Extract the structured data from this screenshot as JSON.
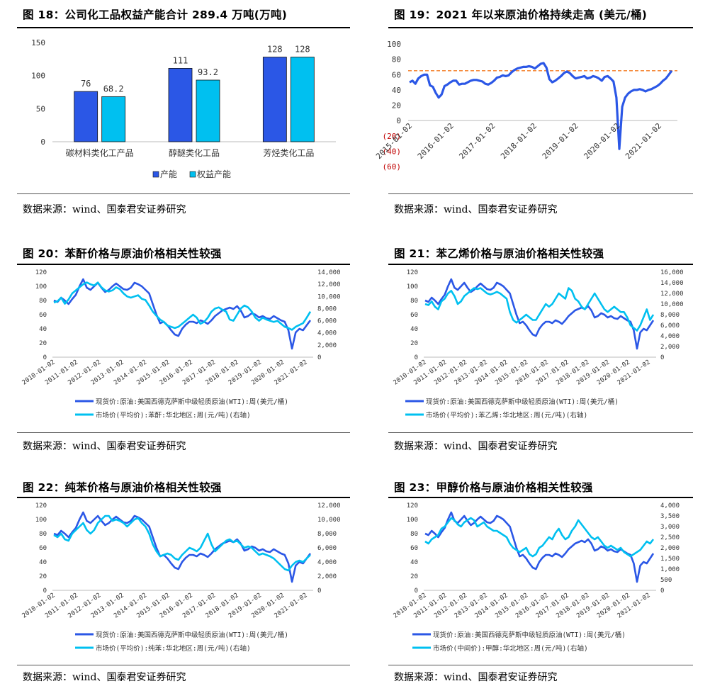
{
  "sections": [
    {
      "title": "图 18：公司化工品权益产能合计 289.4 万吨(万吨)",
      "source": "数据来源：wind、国泰君安证券研究"
    },
    {
      "title": "图 19：2021 年以来原油价格持续走高 (美元/桶)",
      "source": "数据来源：wind、国泰君安证券研究"
    },
    {
      "title": "图 20：苯酐价格与原油价格相关性较强",
      "source": "数据来源：wind、国泰君安证券研究"
    },
    {
      "title": "图 21：苯乙烯价格与原油价格相关性较强",
      "source": "数据来源：wind、国泰君安证券研究"
    },
    {
      "title": "图 22：纯苯价格与原油价格相关性较强",
      "source": "数据来源：wind、国泰君安证券研究"
    },
    {
      "title": "图 23：甲醇价格与原油价格相关性较强",
      "source": "数据来源：wind、国泰君安证券研究"
    }
  ],
  "chart_data": [
    {
      "type": "bar",
      "categories": [
        "碳材料类化工产品",
        "醇醚类化工品",
        "芳烃类化工品"
      ],
      "series": [
        {
          "name": "产能",
          "values": [
            76,
            111,
            128
          ],
          "labels": [
            "76",
            "111",
            "128"
          ],
          "color": "#2b57e6"
        },
        {
          "name": "权益产能",
          "values": [
            68.2,
            93.2,
            128
          ],
          "labels": [
            "68.2",
            "93.2",
            "128"
          ],
          "color": "#00c0f0"
        }
      ],
      "ylim": [
        0,
        150
      ],
      "yticks": [
        "0",
        "50",
        "100",
        "150"
      ],
      "legend": "bottom"
    },
    {
      "type": "line",
      "x_ticks": [
        "2015-01-02",
        "2016-01-02",
        "2017-01-02",
        "2018-01-02",
        "2019-01-02",
        "2020-01-02",
        "2021-01-02"
      ],
      "y_ticks": [
        "(60)",
        "(40)",
        "(20)",
        "0",
        "20",
        "40",
        "60",
        "80",
        "100"
      ],
      "ylim": [
        -60,
        100
      ],
      "reference_line": 65,
      "series": [
        {
          "values": [
            50,
            52,
            48,
            55,
            58,
            60,
            60,
            46,
            44,
            36,
            30,
            34,
            45,
            47,
            50,
            52,
            52,
            47,
            48,
            48,
            50,
            52,
            53,
            53,
            52,
            51,
            48,
            47,
            49,
            52,
            56,
            57,
            59,
            58,
            59,
            63,
            66,
            68,
            69,
            70,
            70,
            71,
            70,
            68,
            71,
            74,
            75,
            69,
            54,
            50,
            52,
            55,
            58,
            62,
            64,
            62,
            58,
            55,
            56,
            57,
            58,
            55,
            56,
            58,
            57,
            55,
            52,
            57,
            58,
            55,
            51,
            30,
            -37,
            18,
            30,
            35,
            38,
            40,
            40,
            41,
            40,
            38,
            40,
            41,
            43,
            45,
            48,
            52,
            55,
            60,
            65
          ],
          "color": "#2b57e6"
        }
      ],
      "ref_color": "#f47b20"
    },
    {
      "type": "line",
      "x_ticks": [
        "2010-01-02",
        "2011-01-02",
        "2012-01-02",
        "2013-01-02",
        "2014-01-02",
        "2015-01-02",
        "2016-01-02",
        "2017-01-02",
        "2018-01-02",
        "2019-01-02",
        "2020-01-02",
        "2021-01-02"
      ],
      "left_ticks": [
        "0",
        "20",
        "40",
        "60",
        "80",
        "100",
        "120"
      ],
      "right_ticks": [
        "0",
        "2,000",
        "4,000",
        "6,000",
        "8,000",
        "10,000",
        "12,000",
        "14,000"
      ],
      "left_lim": [
        0,
        120
      ],
      "right_lim": [
        0,
        14000
      ],
      "series": [
        {
          "name": "现货价:原油:美国西德克萨斯中级轻质原油(WTI):周(美元/桶)",
          "axis": "left",
          "color": "#2b57e6",
          "values": [
            80,
            78,
            84,
            80,
            75,
            82,
            88,
            100,
            110,
            98,
            95,
            100,
            105,
            98,
            92,
            95,
            100,
            104,
            100,
            96,
            95,
            98,
            105,
            103,
            100,
            95,
            90,
            75,
            60,
            48,
            50,
            45,
            38,
            32,
            30,
            40,
            46,
            50,
            50,
            48,
            52,
            50,
            47,
            52,
            58,
            62,
            66,
            68,
            70,
            68,
            72,
            66,
            56,
            58,
            62,
            60,
            56,
            58,
            55,
            54,
            58,
            55,
            52,
            50,
            38,
            12,
            35,
            40,
            38,
            45,
            52
          ]
        },
        {
          "name": "市场价(平均价):苯酐:华北地区:周(元/吨)(右轴)",
          "axis": "right",
          "color": "#00c0f0",
          "values": [
            9000,
            9200,
            9800,
            8800,
            9500,
            10500,
            11000,
            11500,
            12000,
            12300,
            12000,
            11800,
            12300,
            11500,
            11000,
            10800,
            11000,
            11500,
            11200,
            10500,
            10000,
            9800,
            10000,
            10200,
            9600,
            9400,
            8500,
            7500,
            6800,
            6200,
            5800,
            5200,
            5000,
            4800,
            5000,
            5500,
            6000,
            6500,
            7000,
            6500,
            5500,
            5800,
            6500,
            7500,
            8000,
            8200,
            7800,
            7500,
            6200,
            6000,
            7000,
            8000,
            8500,
            8200,
            7500,
            6500,
            6000,
            6500,
            6200,
            6000,
            5800,
            6000,
            5500,
            5000,
            4800,
            4500,
            5000,
            5300,
            5600,
            6500,
            7500
          ]
        }
      ],
      "legend": "bottom"
    },
    {
      "type": "line",
      "x_ticks": [
        "2010-01-02",
        "2011-01-02",
        "2012-01-02",
        "2013-01-02",
        "2014-01-02",
        "2015-01-02",
        "2016-01-02",
        "2017-01-02",
        "2018-01-02",
        "2019-01-02",
        "2020-01-02",
        "2021-01-02"
      ],
      "left_ticks": [
        "0",
        "20",
        "40",
        "60",
        "80",
        "100",
        "120"
      ],
      "right_ticks": [
        "0",
        "2,000",
        "4,000",
        "6,000",
        "8,000",
        "10,000",
        "12,000",
        "14,000",
        "16,000"
      ],
      "left_lim": [
        0,
        120
      ],
      "right_lim": [
        0,
        16000
      ],
      "series": [
        {
          "name": "现货价:原油:美国西德克萨斯中级轻质原油(WTI):周(美元/桶)",
          "axis": "left",
          "color": "#2b57e6",
          "values": [
            80,
            78,
            84,
            80,
            75,
            82,
            88,
            100,
            110,
            98,
            95,
            100,
            105,
            98,
            92,
            95,
            100,
            104,
            100,
            96,
            95,
            98,
            105,
            103,
            100,
            95,
            90,
            75,
            60,
            48,
            50,
            45,
            38,
            32,
            30,
            40,
            46,
            50,
            50,
            48,
            52,
            50,
            47,
            52,
            58,
            62,
            66,
            68,
            70,
            68,
            72,
            66,
            56,
            58,
            62,
            60,
            56,
            58,
            55,
            54,
            58,
            55,
            52,
            50,
            38,
            12,
            35,
            40,
            38,
            45,
            52
          ]
        },
        {
          "name": "市场价(平均价):苯乙烯:华北地区:周(元/吨)(右轴)",
          "axis": "right",
          "color": "#00c0f0",
          "values": [
            10000,
            9800,
            10500,
            9500,
            9000,
            10500,
            11000,
            12000,
            12500,
            11500,
            10000,
            10500,
            11500,
            12000,
            12500,
            13000,
            12800,
            13000,
            12500,
            12000,
            11800,
            12000,
            12300,
            12000,
            11500,
            11000,
            8500,
            7000,
            6500,
            7000,
            7500,
            8000,
            7500,
            7000,
            7000,
            8000,
            9000,
            10000,
            9500,
            10000,
            11000,
            12000,
            11500,
            11000,
            13000,
            12500,
            11000,
            10500,
            9500,
            9000,
            10000,
            11000,
            12000,
            11000,
            10000,
            9000,
            8500,
            9000,
            9500,
            9000,
            8500,
            8500,
            7500,
            6000,
            5500,
            5000,
            6000,
            7500,
            9000,
            7000,
            8000
          ]
        }
      ],
      "legend": "bottom"
    },
    {
      "type": "line",
      "x_ticks": [
        "2010-01-02",
        "2011-01-02",
        "2012-01-02",
        "2013-01-02",
        "2014-01-02",
        "2015-01-02",
        "2016-01-02",
        "2017-01-02",
        "2018-01-02",
        "2019-01-02",
        "2020-01-02",
        "2021-01-02"
      ],
      "left_ticks": [
        "0",
        "20",
        "40",
        "60",
        "80",
        "100",
        "120"
      ],
      "right_ticks": [
        "0",
        "2,000",
        "4,000",
        "6,000",
        "8,000",
        "10,000",
        "12,000"
      ],
      "left_lim": [
        0,
        120
      ],
      "right_lim": [
        0,
        12000
      ],
      "series": [
        {
          "name": "现货价:原油:美国西德克萨斯中级轻质原油(WTI):周(美元/桶)",
          "axis": "left",
          "color": "#2b57e6",
          "values": [
            80,
            78,
            84,
            80,
            75,
            82,
            88,
            100,
            110,
            98,
            95,
            100,
            105,
            98,
            92,
            95,
            100,
            104,
            100,
            96,
            95,
            98,
            105,
            103,
            100,
            95,
            90,
            75,
            60,
            48,
            50,
            45,
            38,
            32,
            30,
            40,
            46,
            50,
            50,
            48,
            52,
            50,
            47,
            52,
            58,
            62,
            66,
            68,
            70,
            68,
            72,
            66,
            56,
            58,
            62,
            60,
            56,
            58,
            55,
            54,
            58,
            55,
            52,
            50,
            38,
            12,
            35,
            40,
            38,
            45,
            52
          ]
        },
        {
          "name": "市场价(平均价):纯苯:华北地区:周(元/吨)(右轴)",
          "axis": "right",
          "color": "#00c0f0",
          "values": [
            7800,
            7500,
            8000,
            7200,
            7000,
            8000,
            8500,
            9000,
            9500,
            8500,
            8000,
            8500,
            9500,
            10000,
            10500,
            10500,
            9800,
            10000,
            9800,
            9500,
            9000,
            9500,
            10000,
            10200,
            9500,
            9000,
            8000,
            6500,
            5500,
            4800,
            5000,
            5200,
            5000,
            4500,
            4300,
            5000,
            5500,
            6000,
            5800,
            5500,
            6000,
            7000,
            8000,
            6500,
            5500,
            6000,
            6500,
            7000,
            7200,
            6800,
            7000,
            6500,
            6000,
            6200,
            6000,
            5500,
            5000,
            5200,
            5000,
            4800,
            4500,
            4000,
            3500,
            3000,
            2800,
            3500,
            4000,
            4200,
            4000,
            4500,
            5000
          ]
        }
      ],
      "legend": "bottom"
    },
    {
      "type": "line",
      "x_ticks": [
        "2010-01-02",
        "2011-01-02",
        "2012-01-02",
        "2013-01-02",
        "2014-01-02",
        "2015-01-02",
        "2016-01-02",
        "2017-01-02",
        "2018-01-02",
        "2019-01-02",
        "2020-01-02",
        "2021-01-02"
      ],
      "left_ticks": [
        "0",
        "20",
        "40",
        "60",
        "80",
        "100",
        "120"
      ],
      "right_ticks": [
        "0",
        "500",
        "1,000",
        "1,500",
        "2,000",
        "2,500",
        "3,000",
        "3,500",
        "4,000"
      ],
      "left_lim": [
        0,
        120
      ],
      "right_lim": [
        0,
        4000
      ],
      "series": [
        {
          "name": "现货价:原油:美国西德克萨斯中级轻质原油(WTI):周(美元/桶)",
          "axis": "left",
          "color": "#2b57e6",
          "values": [
            80,
            78,
            84,
            80,
            75,
            82,
            88,
            100,
            110,
            98,
            95,
            100,
            105,
            98,
            92,
            95,
            100,
            104,
            100,
            96,
            95,
            98,
            105,
            103,
            100,
            95,
            90,
            75,
            60,
            48,
            50,
            45,
            38,
            32,
            30,
            40,
            46,
            50,
            50,
            48,
            52,
            50,
            47,
            52,
            58,
            62,
            66,
            68,
            70,
            68,
            72,
            66,
            56,
            58,
            62,
            60,
            56,
            58,
            55,
            54,
            58,
            55,
            52,
            50,
            38,
            12,
            35,
            40,
            38,
            45,
            52
          ]
        },
        {
          "name": "市场价(中间价):甲醇:华北地区:周(元/吨)(右轴)",
          "axis": "right",
          "color": "#00c0f0",
          "values": [
            2300,
            2200,
            2400,
            2500,
            2600,
            2900,
            3000,
            3200,
            3400,
            3300,
            3100,
            3000,
            3200,
            3300,
            3400,
            3300,
            3000,
            3100,
            3200,
            3000,
            2900,
            2800,
            2800,
            2700,
            2600,
            2500,
            2200,
            2000,
            1900,
            1800,
            1900,
            2000,
            1700,
            1600,
            1700,
            2000,
            2100,
            2300,
            2500,
            2400,
            2700,
            2900,
            2600,
            2400,
            2500,
            2800,
            3000,
            3300,
            3100,
            2900,
            2700,
            2500,
            2400,
            2500,
            2300,
            2100,
            2000,
            2100,
            2000,
            1900,
            2000,
            1800,
            1700,
            1600,
            1700,
            1800,
            1900,
            2100,
            2300,
            2200,
            2400
          ]
        }
      ],
      "legend": "bottom"
    }
  ]
}
